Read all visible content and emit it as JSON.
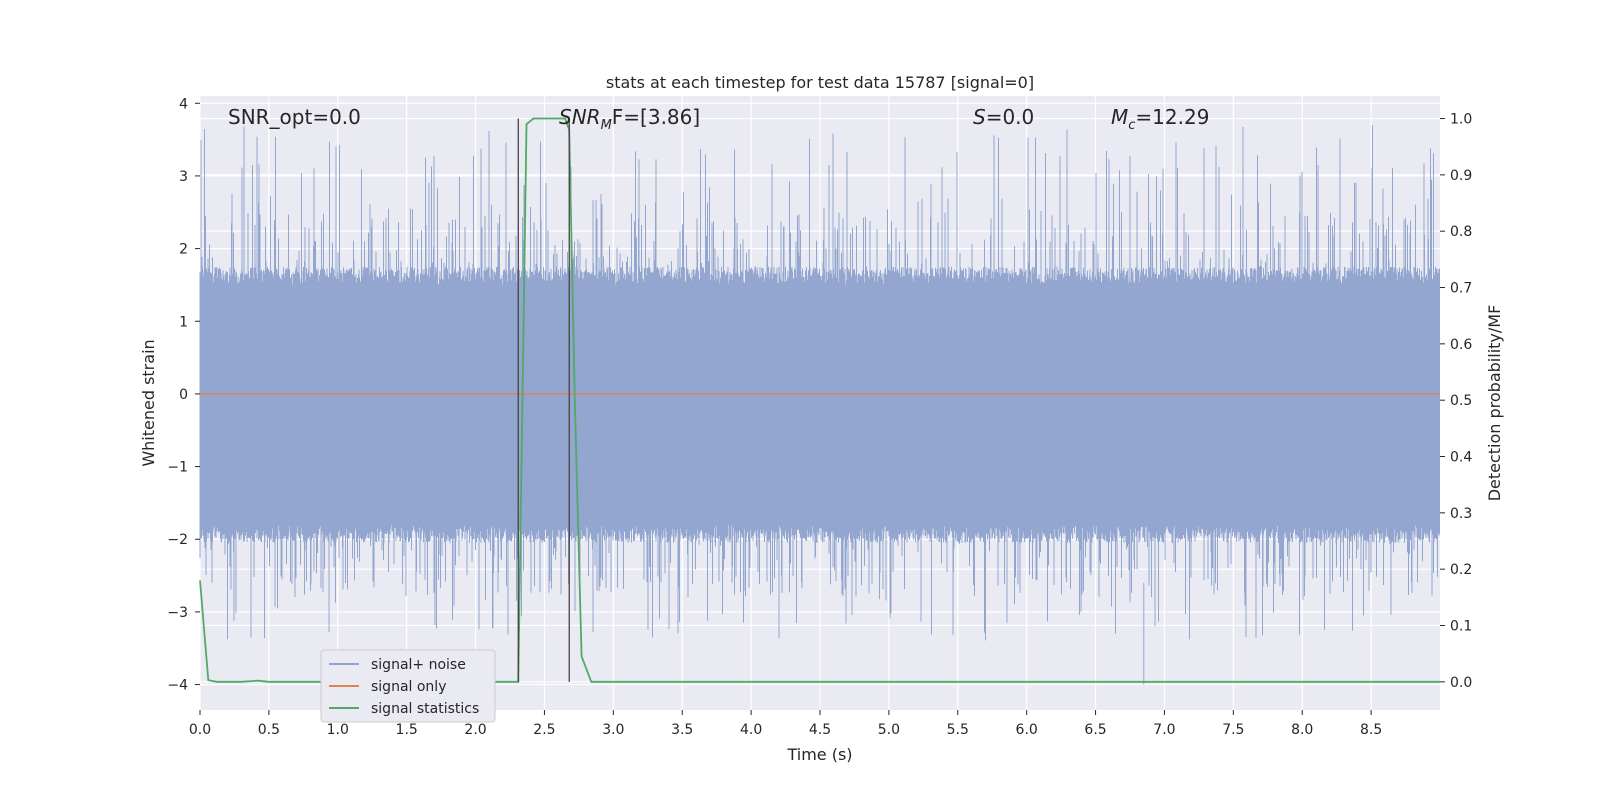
{
  "chart_data": {
    "type": "line",
    "title": "stats at each timestep for test data 15787 [signal=0]",
    "xlabel": "Time (s)",
    "ylabel": "Whitened strain",
    "y2label": "Detection probability/MF",
    "xlim": [
      0.0,
      9.0
    ],
    "ylim": [
      -4.35,
      4.1
    ],
    "y2lim": [
      -0.05,
      1.04
    ],
    "xticks": [
      "0.0",
      "0.5",
      "1.0",
      "1.5",
      "2.0",
      "2.5",
      "3.0",
      "3.5",
      "4.0",
      "4.5",
      "5.0",
      "5.5",
      "6.0",
      "6.5",
      "7.0",
      "7.5",
      "8.0",
      "8.5"
    ],
    "yticks": [
      "4",
      "3",
      "2",
      "1",
      "0",
      "−1",
      "−2",
      "−3",
      "−4"
    ],
    "y2ticks": [
      "1.0",
      "0.9",
      "0.8",
      "0.7",
      "0.6",
      "0.5",
      "0.4",
      "0.3",
      "0.2",
      "0.1",
      "0.0"
    ],
    "grid": true,
    "legend_position": "lower-left",
    "annotations": [
      {
        "label": "SNR_opt=0.0"
      },
      {
        "label": "SNR",
        "sub": "M",
        "suffix": "F=[3.86]"
      },
      {
        "label": "S",
        "suffix": "=0.0"
      },
      {
        "label": "M",
        "sub": "c",
        "suffix": "=12.29"
      }
    ],
    "vlines_x": [
      2.31,
      2.68
    ],
    "series": [
      {
        "name": "signal+ noise",
        "color": "#8ea2cc",
        "axis": "left",
        "kind": "noise",
        "envelope": [
          -1.8,
          1.5
        ],
        "peak_range": [
          -4.0,
          3.7
        ]
      },
      {
        "name": "signal only",
        "color": "#dd8452",
        "axis": "left",
        "x": [
          0.0,
          9.0
        ],
        "y": [
          0.0,
          0.0
        ]
      },
      {
        "name": "signal statistics",
        "color": "#55a868",
        "axis": "right",
        "x": [
          0.0,
          0.06,
          0.12,
          0.2,
          0.3,
          0.42,
          0.5,
          1.0,
          1.5,
          2.0,
          2.31,
          2.37,
          2.42,
          2.48,
          2.55,
          2.6,
          2.65,
          2.68,
          2.72,
          2.77,
          2.84,
          3.0,
          4.0,
          5.0,
          6.0,
          7.0,
          8.0,
          9.0
        ],
        "y": [
          0.18,
          0.003,
          0.0,
          0.0,
          0.0,
          0.002,
          0.0,
          0.0,
          0.0,
          0.0,
          0.0,
          0.99,
          1.0,
          1.0,
          1.0,
          1.0,
          1.0,
          0.98,
          0.5,
          0.045,
          0.0,
          0.0,
          0.0,
          0.0,
          0.0,
          0.0,
          0.0,
          0.0
        ]
      }
    ]
  },
  "colors": {
    "plot_bg": "#eaeaf2",
    "grid": "#ffffff",
    "vline": "#444444",
    "legend_bg": "#eaeaf2",
    "legend_border": "#cccccc"
  }
}
